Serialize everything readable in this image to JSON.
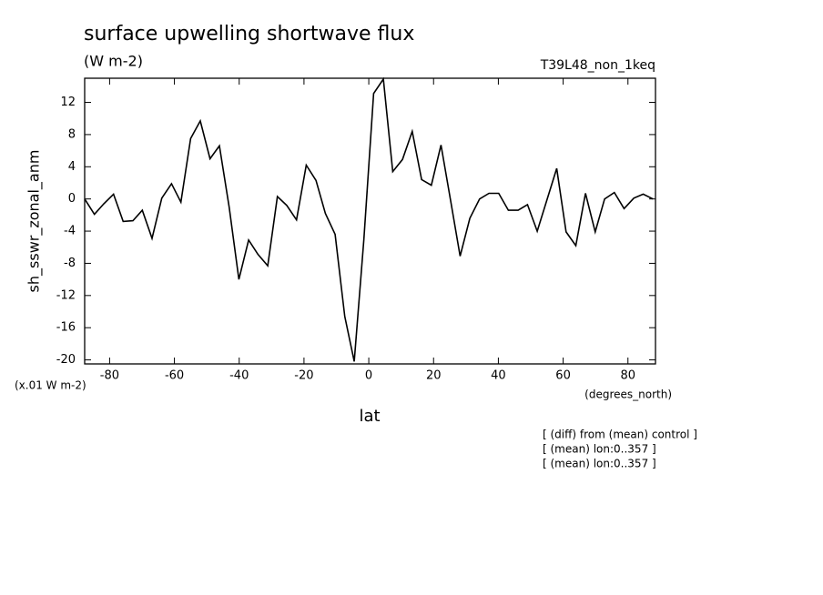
{
  "chart_data": {
    "type": "line",
    "title": "surface upwelling shortwave flux",
    "subtitle": "(W m-2)",
    "experiment": "T39L48_non_1keq",
    "y_label": "sh_sswr_zonal_anm",
    "y_units": "(x.01 W m-2)",
    "x_label": "lat",
    "x_units": "(degrees_north)",
    "notes": [
      "[ (diff) from (mean) control ]",
      "[ (mean) lon:0..357 ]",
      "[ (mean) lon:0..357 ]"
    ],
    "x": [
      -87.7,
      -84.7,
      -81.8,
      -78.8,
      -75.8,
      -72.8,
      -69.9,
      -66.9,
      -63.9,
      -60.9,
      -58.0,
      -55.0,
      -52.0,
      -49.0,
      -46.1,
      -43.1,
      -40.1,
      -37.1,
      -34.2,
      -31.2,
      -28.2,
      -25.3,
      -22.3,
      -19.3,
      -16.3,
      -13.4,
      -10.4,
      -7.4,
      -4.5,
      -1.5,
      1.5,
      4.5,
      7.4,
      10.4,
      13.4,
      16.3,
      19.3,
      22.3,
      25.3,
      28.2,
      31.2,
      34.2,
      37.1,
      40.1,
      43.1,
      46.1,
      49.0,
      52.0,
      55.0,
      58.0,
      60.9,
      63.9,
      66.9,
      69.9,
      72.8,
      75.8,
      78.8,
      81.8,
      84.7,
      87.7
    ],
    "series": [
      {
        "name": "sh_sswr_zonal_anm",
        "color": "#000000",
        "values": [
          0,
          -1.9,
          -0.6,
          0.6,
          -2.8,
          -2.7,
          -1.4,
          -4.9,
          0.1,
          1.9,
          -0.4,
          7.5,
          9.7,
          5.0,
          6.6,
          -1.0,
          -10.0,
          -5.1,
          -6.9,
          -8.3,
          0.3,
          -0.8,
          -2.6,
          4.2,
          2.3,
          -1.8,
          -4.4,
          -14.6,
          -20.2,
          -5.0,
          13.1,
          14.9,
          3.4,
          4.9,
          8.4,
          2.4,
          1.7,
          6.7,
          -0.3,
          -7.1,
          -2.4,
          0,
          0.7,
          0.7,
          -1.4,
          -1.4,
          -0.7,
          -4.0,
          -0.1,
          3.8,
          -4.1,
          -5.8,
          0.7,
          -4.1,
          0,
          0.8,
          -1.2,
          0.1,
          0.6,
          0
        ]
      }
    ],
    "xlim": [
      -87.7,
      88.5
    ],
    "ylim": [
      -20.5,
      15
    ],
    "xticks": [
      -80,
      -60,
      -40,
      -20,
      0,
      20,
      40,
      60,
      80
    ],
    "yticks": [
      -20,
      -16,
      -12,
      -8,
      -4,
      0,
      4,
      8,
      12
    ]
  }
}
